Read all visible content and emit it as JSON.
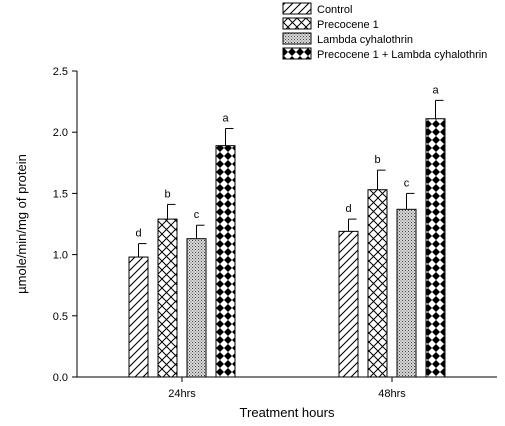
{
  "chart_data": {
    "type": "bar",
    "categories": [
      "24hrs",
      "48hrs"
    ],
    "series": [
      {
        "name": "Control",
        "pattern": "diagonal-hatch",
        "values": [
          0.98,
          1.19
        ],
        "errors": [
          0.11,
          0.1
        ],
        "letters": [
          "d",
          "d"
        ]
      },
      {
        "name": "Precocene 1",
        "pattern": "crosshatch",
        "values": [
          1.29,
          1.53
        ],
        "errors": [
          0.12,
          0.16
        ],
        "letters": [
          "b",
          "b"
        ]
      },
      {
        "name": "Lambda cyhalothrin",
        "pattern": "fine-dots",
        "values": [
          1.13,
          1.37
        ],
        "errors": [
          0.11,
          0.13
        ],
        "letters": [
          "c",
          "c"
        ]
      },
      {
        "name": "Precocene 1 + Lambda cyhalothrin",
        "pattern": "diamond-checker",
        "values": [
          1.89,
          2.11
        ],
        "errors": [
          0.14,
          0.15
        ],
        "letters": [
          "a",
          "a"
        ]
      }
    ],
    "xlabel": "Treatment hours",
    "ylabel": "µmole/min/mg of protein",
    "ylim": [
      0,
      2.5
    ],
    "yticks": [
      "0.0",
      "0.5",
      "1.0",
      "1.5",
      "2.0",
      "2.5"
    ],
    "grid": false,
    "legend_position": "top-right"
  }
}
